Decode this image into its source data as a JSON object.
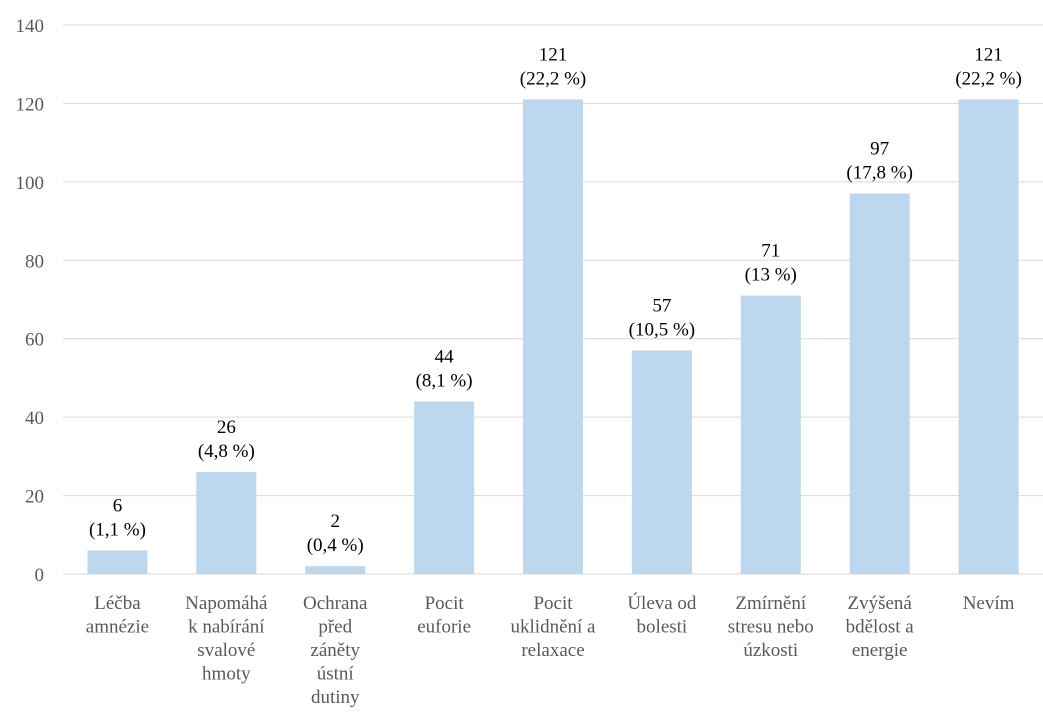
{
  "chart_data": {
    "type": "bar",
    "categories": [
      [
        "Léčba",
        "amnézie"
      ],
      [
        "Napomáhá",
        "k nabírání",
        "svalové",
        "hmoty"
      ],
      [
        "Ochrana",
        "před",
        "záněty",
        "ústní",
        "dutiny"
      ],
      [
        "Pocit",
        "euforie"
      ],
      [
        "Pocit",
        "uklidnění a",
        "relaxace"
      ],
      [
        "Úleva od",
        "bolesti"
      ],
      [
        "Zmírnění",
        "stresu nebo",
        "úzkosti"
      ],
      [
        "Zvýšená",
        "bdělost a",
        "energie"
      ],
      [
        "Nevím"
      ]
    ],
    "values": [
      6,
      26,
      2,
      44,
      121,
      57,
      71,
      97,
      121
    ],
    "percent_labels": [
      "(1,1 %)",
      "(4,8 %)",
      "(0,4 %)",
      "(8,1 %)",
      "(22,2 %)",
      "(10,5 %)",
      "(13 %)",
      "(17,8 %)",
      "(22,2 %)"
    ],
    "ylim": [
      0,
      140
    ],
    "yticks": [
      0,
      20,
      40,
      60,
      80,
      100,
      120,
      140
    ],
    "grid": true,
    "title": "",
    "xlabel": "",
    "ylabel": "",
    "bar_color": "#bdd7ee",
    "grid_color": "#d9d9d9"
  }
}
